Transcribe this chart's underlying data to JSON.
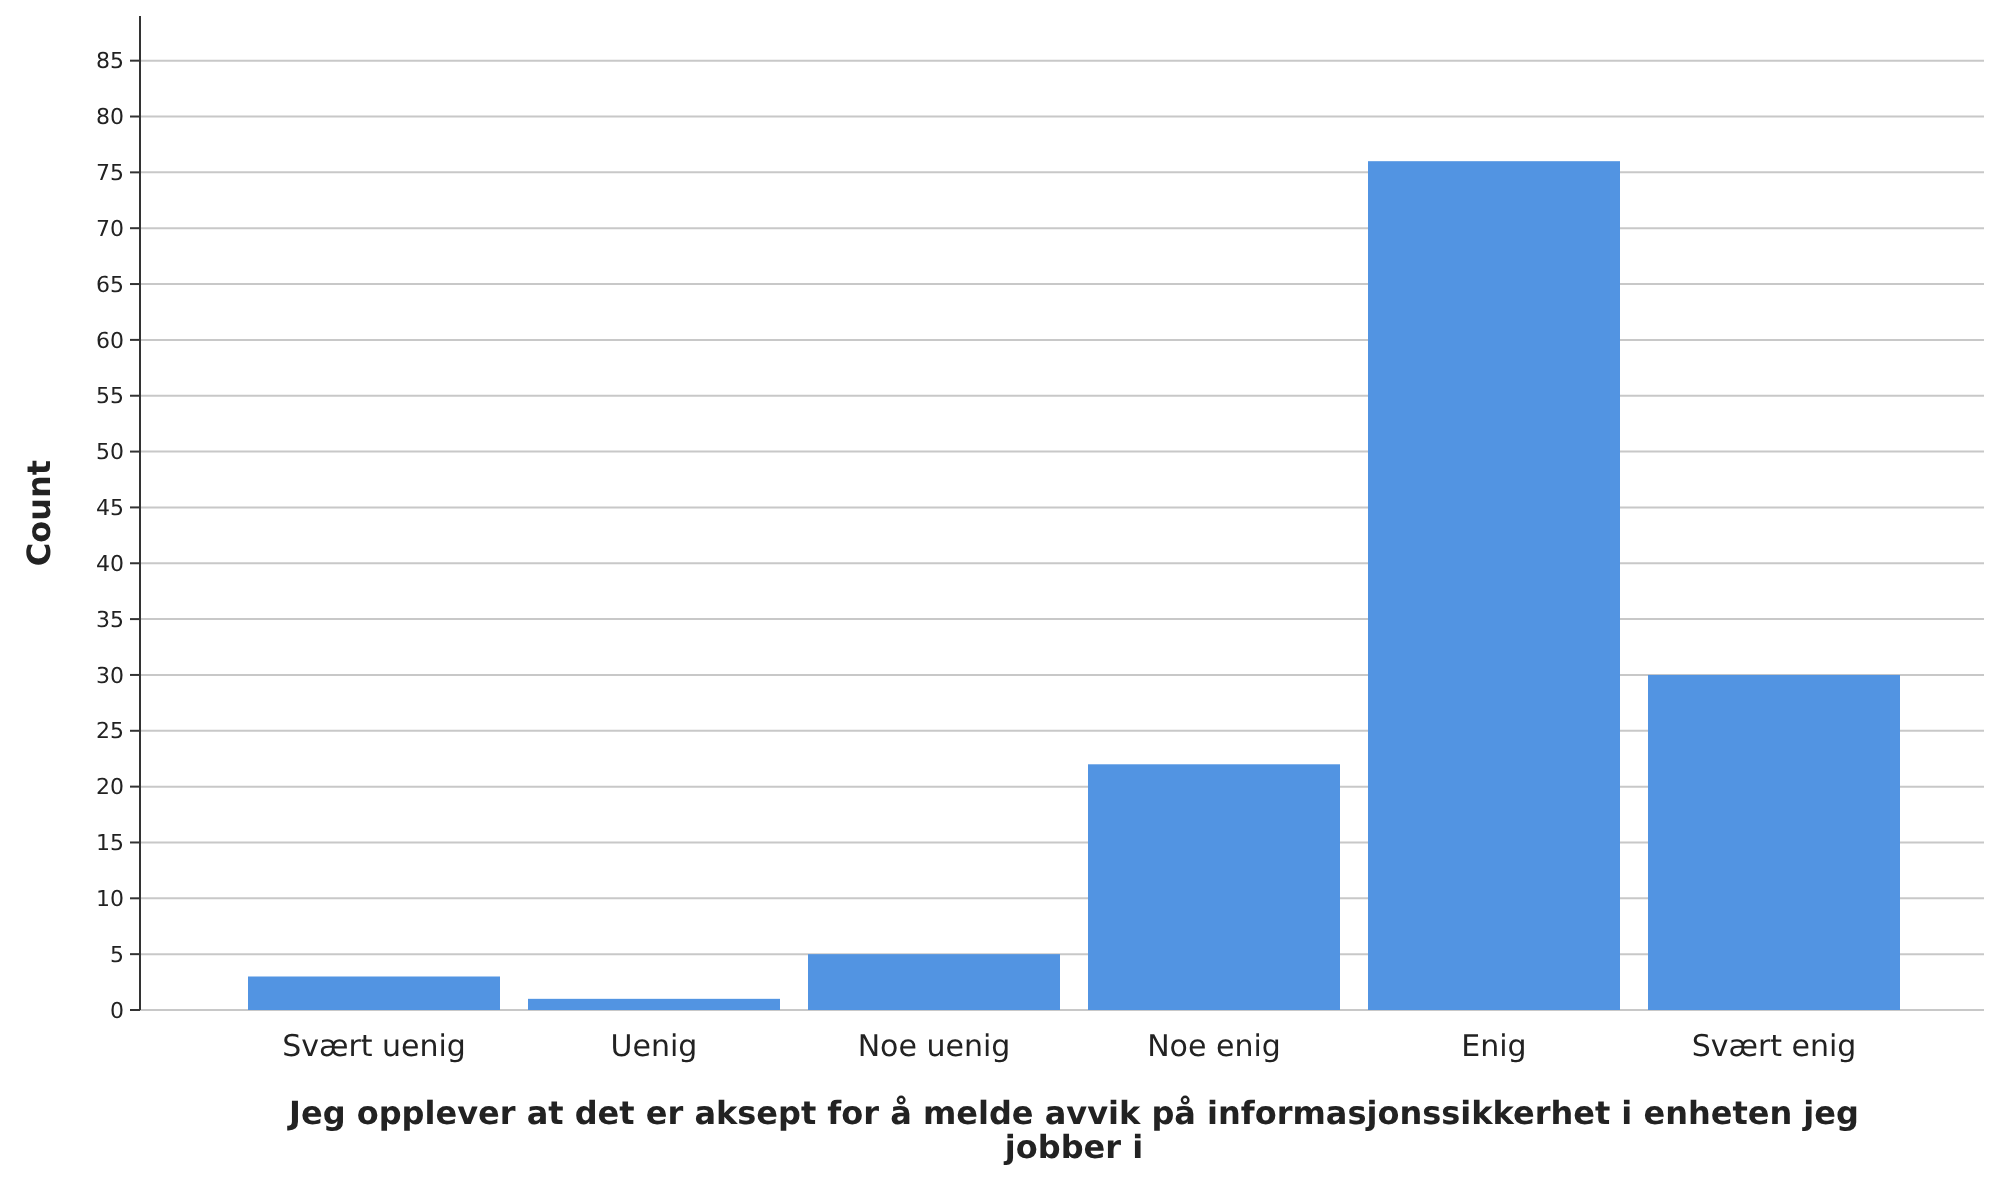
{
  "chart_data": {
    "type": "bar",
    "xlabel": "Jeg opplever at det er aksept for å melde avvik på informasjonssikkerhet i enheten jeg jobber i",
    "ylabel": "Count",
    "categories": [
      "Svært uenig",
      "Uenig",
      "Noe uenig",
      "Noe enig",
      "Enig",
      "Svært enig"
    ],
    "values": [
      3,
      1,
      5,
      22,
      76,
      30
    ],
    "color": "#5294e2",
    "ylim": [
      0,
      89
    ],
    "yticks": [
      0,
      5,
      10,
      15,
      20,
      25,
      30,
      35,
      40,
      45,
      50,
      55,
      60,
      65,
      70,
      75,
      80,
      85
    ],
    "grid": "y"
  }
}
